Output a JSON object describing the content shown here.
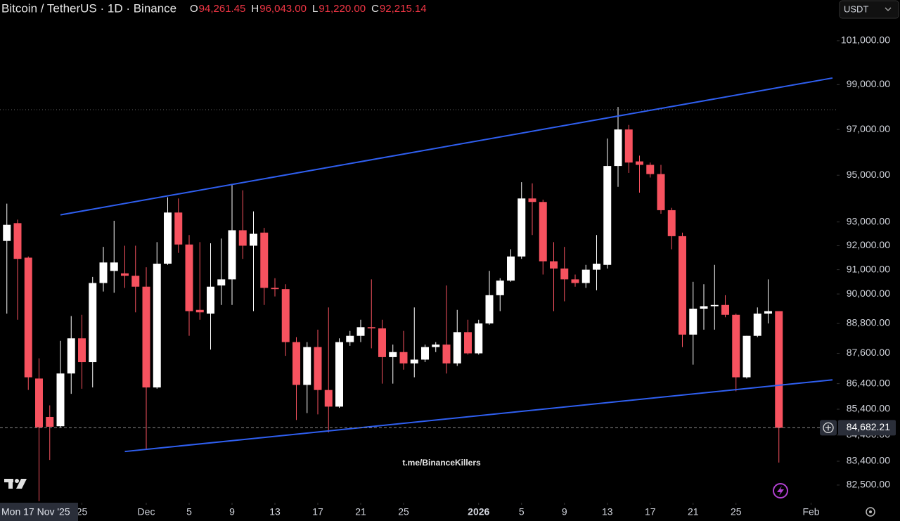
{
  "chart_data": {
    "type": "candlestick",
    "title": "Bitcoin / TetherUS · 1D · Binance",
    "ohlc_legend": {
      "letters": [
        "O",
        "H",
        "L",
        "C"
      ],
      "values": [
        94261.45,
        96043,
        91220,
        92215.14
      ],
      "value_labels": [
        "94,261.45",
        "96,043.00",
        "91,220.00",
        "92,215.14"
      ]
    },
    "currency_selector": "USDT",
    "watermark": "t.me/BinanceKillers",
    "crosshair_date": "Mon 17 Nov '25",
    "up_color": "#ffffff",
    "down_color": "#f7525f",
    "log_scale": true,
    "x": [
      "2025-11-18",
      "2025-11-19",
      "2025-11-20",
      "2025-11-21",
      "2025-11-22",
      "2025-11-23",
      "2025-11-24",
      "2025-11-25",
      "2025-11-26",
      "2025-11-27",
      "2025-11-28",
      "2025-11-29",
      "2025-11-30",
      "2025-12-01",
      "2025-12-02",
      "2025-12-03",
      "2025-12-04",
      "2025-12-05",
      "2025-12-06",
      "2025-12-07",
      "2025-12-08",
      "2025-12-09",
      "2025-12-10",
      "2025-12-11",
      "2025-12-12",
      "2025-12-13",
      "2025-12-14",
      "2025-12-15",
      "2025-12-16",
      "2025-12-17",
      "2025-12-18",
      "2025-12-19",
      "2025-12-20",
      "2025-12-21",
      "2025-12-22",
      "2025-12-23",
      "2025-12-24",
      "2025-12-25",
      "2025-12-26",
      "2025-12-27",
      "2025-12-28",
      "2025-12-29",
      "2025-12-30",
      "2025-12-31",
      "2026-01-01",
      "2026-01-02",
      "2026-01-03",
      "2026-01-04",
      "2026-01-05",
      "2026-01-06",
      "2026-01-07",
      "2026-01-08",
      "2026-01-09",
      "2026-01-10",
      "2026-01-11",
      "2026-01-12",
      "2026-01-13",
      "2026-01-14",
      "2026-01-15",
      "2026-01-16",
      "2026-01-17",
      "2026-01-18",
      "2026-01-19",
      "2026-01-20",
      "2026-01-21",
      "2026-01-22",
      "2026-01-23",
      "2026-01-24",
      "2026-01-25",
      "2026-01-26",
      "2026-01-27",
      "2026-01-28",
      "2026-01-29"
    ],
    "open": [
      92200,
      92950,
      91500,
      86600,
      85100,
      84740,
      86800,
      88200,
      87250,
      90450,
      90950,
      90850,
      90750,
      90300,
      86250,
      91250,
      93400,
      92050,
      89350,
      89200,
      90350,
      90600,
      92650,
      92000,
      92550,
      90250,
      90200,
      88050,
      86350,
      87850,
      86150,
      85500,
      88050,
      88300,
      88650,
      88600,
      87450,
      87650,
      87200,
      87350,
      87850,
      87950,
      87200,
      88450,
      87600,
      88800,
      89950,
      90550,
      91550,
      94000,
      93850,
      91350,
      91050,
      90600,
      90450,
      91000,
      91200,
      95400,
      97000,
      95600,
      95450,
      95050,
      93500,
      92400,
      88350,
      89400,
      89500,
      89550,
      89150,
      86650,
      88300,
      89200,
      89300
    ],
    "high": [
      93780,
      93100,
      91550,
      87400,
      85550,
      88100,
      89100,
      89150,
      90700,
      91950,
      93050,
      92000,
      92000,
      91100,
      92150,
      94050,
      94000,
      92450,
      92150,
      92100,
      92300,
      94600,
      94350,
      93450,
      92750,
      90650,
      90400,
      88250,
      88050,
      88550,
      89450,
      88200,
      88500,
      88950,
      90600,
      88950,
      87950,
      88500,
      89450,
      87950,
      88050,
      90350,
      89350,
      88950,
      88950,
      90950,
      90650,
      91850,
      94700,
      94650,
      93950,
      92150,
      91950,
      90800,
      91200,
      92450,
      96600,
      98000,
      97200,
      95850,
      95550,
      95450,
      93600,
      92550,
      90500,
      90400,
      91200,
      89950,
      89200,
      88300,
      89450,
      90600,
      89300
    ],
    "low": [
      89200,
      88950,
      86150,
      81900,
      83450,
      84690,
      86000,
      86200,
      86250,
      90100,
      90050,
      90250,
      89250,
      83850,
      86200,
      91200,
      91700,
      88300,
      88950,
      87750,
      89550,
      89550,
      91450,
      89300,
      89550,
      89900,
      87500,
      84980,
      85250,
      85200,
      84500,
      85450,
      87900,
      88050,
      87800,
      86400,
      86400,
      86950,
      86650,
      87250,
      87650,
      86800,
      87100,
      87550,
      87550,
      88750,
      89300,
      90500,
      91450,
      92450,
      90800,
      89300,
      89700,
      90300,
      90250,
      90150,
      91050,
      94500,
      95100,
      94250,
      94900,
      93350,
      91850,
      87850,
      87150,
      88550,
      88550,
      89050,
      86100,
      86600,
      88250,
      88800,
      83350
    ],
    "close": [
      92880,
      91450,
      86650,
      84700,
      84720,
      86800,
      88200,
      87250,
      90450,
      91300,
      91300,
      90750,
      90300,
      86250,
      91250,
      93400,
      92050,
      89300,
      89250,
      90300,
      90600,
      92650,
      92000,
      92500,
      90250,
      90200,
      88050,
      86350,
      87850,
      86150,
      85500,
      88050,
      88300,
      88650,
      88600,
      87450,
      87650,
      87200,
      87350,
      87850,
      87950,
      87200,
      88450,
      87600,
      88800,
      89950,
      90550,
      91550,
      94000,
      93850,
      91350,
      91050,
      90600,
      90450,
      91000,
      91250,
      95400,
      97000,
      95550,
      95450,
      95050,
      93500,
      92400,
      88350,
      89400,
      89500,
      89550,
      89150,
      86650,
      88300,
      89200,
      89300,
      84682.21
    ],
    "xlim": [
      "2025-11-17",
      "2026-02-03"
    ],
    "xticks": [
      {
        "value": "2025-11-25",
        "label": "25"
      },
      {
        "value": "2025-12-01",
        "label": "Dec"
      },
      {
        "value": "2025-12-05",
        "label": "5"
      },
      {
        "value": "2025-12-09",
        "label": "9"
      },
      {
        "value": "2025-12-13",
        "label": "13"
      },
      {
        "value": "2025-12-17",
        "label": "17"
      },
      {
        "value": "2025-12-21",
        "label": "21"
      },
      {
        "value": "2025-12-25",
        "label": "25"
      },
      {
        "value": "2026-01-01",
        "label": "2026"
      },
      {
        "value": "2026-01-05",
        "label": "5"
      },
      {
        "value": "2026-01-09",
        "label": "9"
      },
      {
        "value": "2026-01-13",
        "label": "13"
      },
      {
        "value": "2026-01-17",
        "label": "17"
      },
      {
        "value": "2026-01-21",
        "label": "21"
      },
      {
        "value": "2026-01-25",
        "label": "25"
      },
      {
        "value": "2026-02-01",
        "label": "Feb"
      }
    ],
    "ylim": [
      81840,
      102890
    ],
    "yticks": [
      {
        "value": 101000,
        "label": "101,000.00"
      },
      {
        "value": 99000,
        "label": "99,000.00"
      },
      {
        "value": 97000,
        "label": "97,000.00"
      },
      {
        "value": 95000,
        "label": "95,000.00"
      },
      {
        "value": 93000,
        "label": "93,000.00"
      },
      {
        "value": 92000,
        "label": "92,000.00"
      },
      {
        "value": 91000,
        "label": "91,000.00"
      },
      {
        "value": 90000,
        "label": "90,000.00"
      },
      {
        "value": 88800,
        "label": "88,800.00"
      },
      {
        "value": 87600,
        "label": "87,600.00"
      },
      {
        "value": 86400,
        "label": "86,400.00"
      },
      {
        "value": 85400,
        "label": "85,400.00"
      },
      {
        "value": 84400,
        "label": "84,400.00"
      },
      {
        "value": 83400,
        "label": "83,400.00"
      },
      {
        "value": 82500,
        "label": "82,500.00"
      }
    ],
    "last_price": {
      "value": 84682.21,
      "label": "84,682.21"
    },
    "trendlines": [
      {
        "color": "#2f5ff0",
        "x": [
          "2025-11-23",
          "2026-02-03"
        ],
        "values": [
          93300,
          99300
        ]
      },
      {
        "color": "#2f5ff0",
        "x": [
          "2025-11-29",
          "2026-02-03"
        ],
        "values": [
          83770,
          86550
        ]
      }
    ]
  }
}
